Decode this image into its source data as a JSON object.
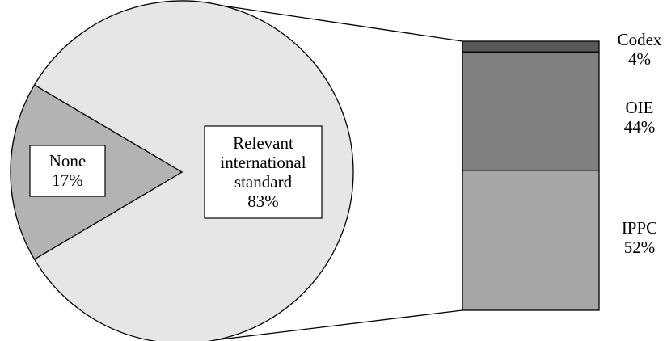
{
  "chart_data": [
    {
      "type": "pie",
      "title": "",
      "slices": [
        {
          "label_lines": [
            "None",
            "17%"
          ],
          "value": 17,
          "color": "#b3b3b3"
        },
        {
          "label_lines": [
            "Relevant",
            "international",
            "standard",
            "83%"
          ],
          "value": 83,
          "color": "#e6e6e6"
        }
      ]
    },
    {
      "type": "bar",
      "stacked": true,
      "title": "",
      "segments": [
        {
          "label_lines": [
            "Codex",
            "4%"
          ],
          "value": 4,
          "color": "#595959"
        },
        {
          "label_lines": [
            "OIE",
            "44%"
          ],
          "value": 44,
          "color": "#808080"
        },
        {
          "label_lines": [
            "IPPC",
            "52%"
          ],
          "value": 52,
          "color": "#a6a6a6"
        }
      ]
    }
  ]
}
